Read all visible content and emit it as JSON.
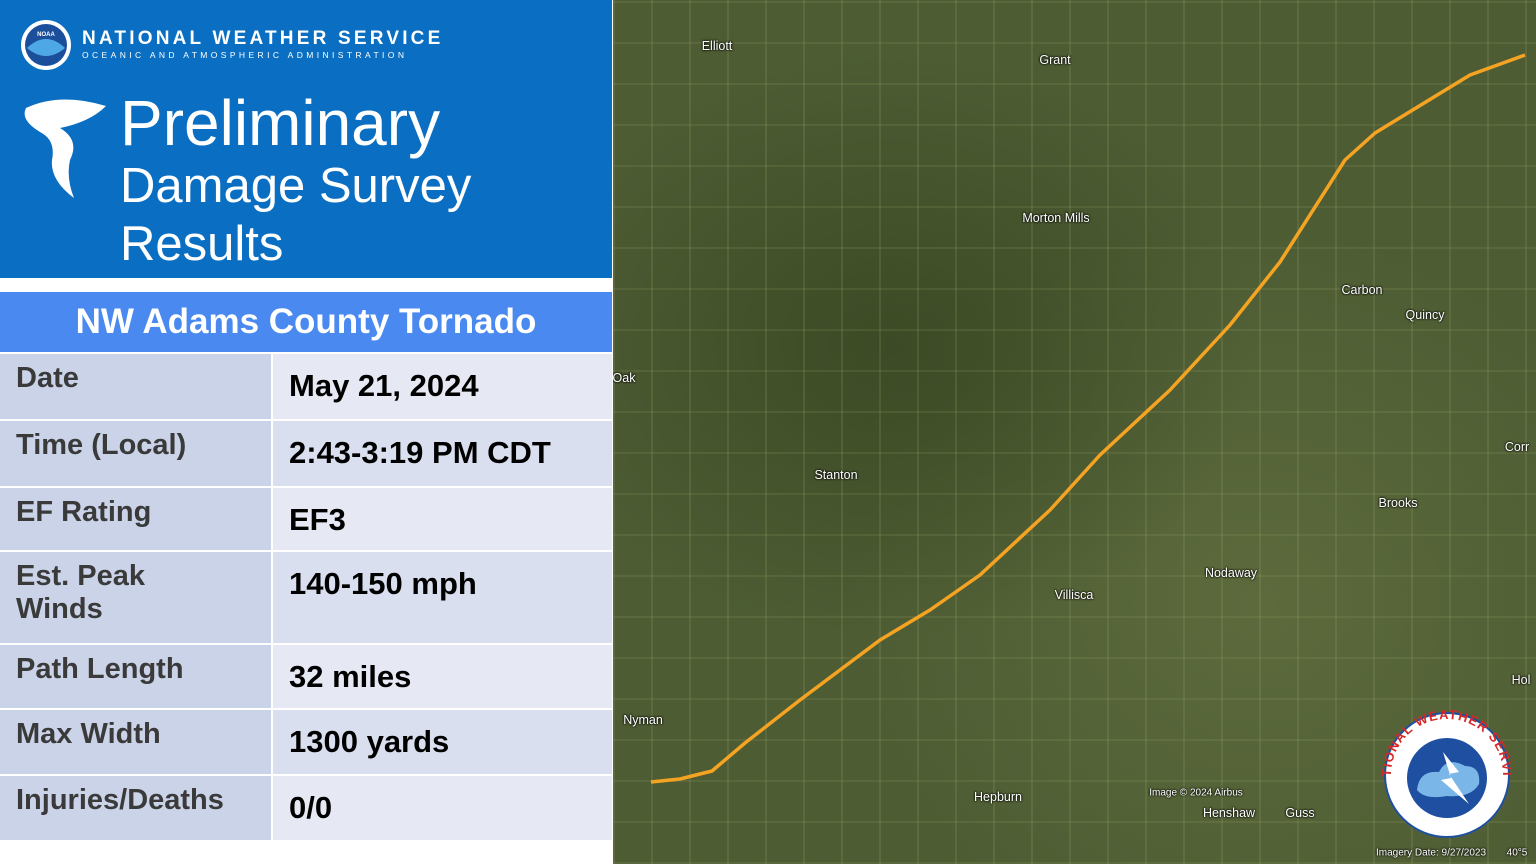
{
  "header": {
    "agency": "NATIONAL WEATHER SERVICE",
    "subagency": "OCEANIC AND ATMOSPHERIC ADMINISTRATION",
    "noaa_logo": "NOAA",
    "title_lines": [
      "Preliminary",
      "Damage Survey",
      "Results"
    ]
  },
  "table": {
    "title": "NW Adams County Tornado",
    "rows": [
      [
        "Date",
        "May 21, 2024"
      ],
      [
        "Time (Local)",
        "2:43-3:19 PM CDT"
      ],
      [
        "EF Rating",
        "EF3"
      ],
      [
        "Est. Peak Winds",
        "140-150 mph"
      ],
      [
        "Path Length",
        "32 miles"
      ],
      [
        "Max Width",
        "1300 yards"
      ],
      [
        "Injuries/Deaths",
        "0/0"
      ]
    ]
  },
  "map": {
    "labels": [
      "Elliott",
      "Grant",
      "Morton Mills",
      "Carbon",
      "Quincy",
      "Oak",
      "Stanton",
      "Corr",
      "Brooks",
      "Nodaway",
      "Villisca",
      "Hol",
      "Nyman",
      "Hepburn",
      "Henshaw",
      "Guss"
    ],
    "imagery_credit": "Image © 2024 Airbus",
    "imagery_date": "Imagery Date: 9/27/2023",
    "coords": "40°5"
  },
  "nws_logo": "NATIONAL WEATHER SERVICE"
}
